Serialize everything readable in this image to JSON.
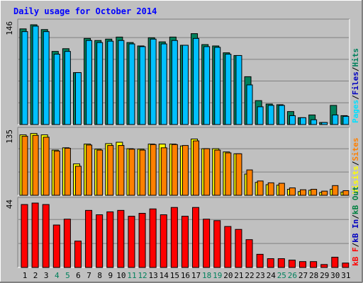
{
  "title": "Daily usage for October 2014",
  "colors": {
    "background": "#c0c0c0",
    "frame_light": "#ffffff",
    "frame_dark": "#808080",
    "title_blue": "#0000ff",
    "hits": "#00805c",
    "files": "#00c0ff",
    "pages": "#00e0ff",
    "visits": "#ffff00",
    "sites": "#ff8000",
    "kb_in": "#0000c0",
    "kb_out": "#008040",
    "kbytes": "#ff0000",
    "weekend_label": "#00805c",
    "day_label": "#000000"
  },
  "chart_data": [
    {
      "type": "bar",
      "panel": "hits-files-pages",
      "y_max_label": "146",
      "legend": [
        {
          "label": "Pages",
          "color": "#00e0ff"
        },
        {
          "label": "/",
          "color": "#000000"
        },
        {
          "label": "Files",
          "color": "#0000c0"
        },
        {
          "label": "/",
          "color": "#000000"
        },
        {
          "label": "Hits",
          "color": "#00805c"
        }
      ],
      "categories": [
        "1",
        "2",
        "3",
        "4",
        "5",
        "6",
        "7",
        "8",
        "9",
        "10",
        "11",
        "12",
        "13",
        "14",
        "15",
        "16",
        "17",
        "18",
        "19",
        "20",
        "21",
        "22",
        "23",
        "24",
        "25",
        "26",
        "27",
        "28",
        "29",
        "30",
        "31"
      ],
      "ymax": 146,
      "series": [
        {
          "name": "Hits",
          "values": [
            140,
            146,
            139,
            107,
            111,
            76,
            126,
            123,
            125,
            128,
            120,
            115,
            127,
            121,
            128,
            116,
            133,
            117,
            115,
            105,
            101,
            70,
            35,
            30,
            29,
            19,
            10,
            14,
            3,
            28,
            13
          ]
        },
        {
          "name": "Files",
          "values": [
            136,
            144,
            136,
            103,
            107,
            76,
            123,
            120,
            122,
            123,
            118,
            114,
            125,
            118,
            123,
            116,
            126,
            114,
            113,
            103,
            101,
            58,
            26,
            28,
            28,
            13,
            10,
            7,
            3,
            14,
            12
          ]
        }
      ]
    },
    {
      "type": "bar",
      "panel": "sites-visits",
      "y_max_label": "135",
      "legend": [
        {
          "label": "Visits",
          "color": "#ffff00"
        },
        {
          "label": "/",
          "color": "#000000"
        },
        {
          "label": "Sites",
          "color": "#ff8000"
        }
      ],
      "categories": [
        "1",
        "2",
        "3",
        "4",
        "5",
        "6",
        "7",
        "8",
        "9",
        "10",
        "11",
        "12",
        "13",
        "14",
        "15",
        "16",
        "17",
        "18",
        "19",
        "20",
        "21",
        "22",
        "23",
        "24",
        "25",
        "26",
        "27",
        "28",
        "29",
        "30",
        "31"
      ],
      "ymax": 135,
      "series": [
        {
          "name": "Visits",
          "values": [
            131,
            134,
            131,
            98,
            103,
            68,
            111,
            100,
            112,
            115,
            101,
            100,
            111,
            111,
            111,
            107,
            122,
            101,
            101,
            94,
            90,
            46,
            28,
            23,
            22,
            13,
            8,
            11,
            6,
            13,
            7
          ]
        },
        {
          "name": "Sites",
          "values": [
            128,
            130,
            126,
            96,
            102,
            63,
            109,
            98,
            108,
            108,
            100,
            98,
            110,
            103,
            110,
            108,
            118,
            101,
            98,
            92,
            90,
            55,
            31,
            27,
            26,
            16,
            12,
            13,
            9,
            21,
            10
          ]
        }
      ]
    },
    {
      "type": "bar",
      "panel": "kbytes",
      "y_max_label": "44",
      "legend": [
        {
          "label": "kB F",
          "color": "#ff0000"
        },
        {
          "label": "/",
          "color": "#000000"
        },
        {
          "label": "kB In",
          "color": "#0000c0"
        },
        {
          "label": "/",
          "color": "#000000"
        },
        {
          "label": "kB Out",
          "color": "#008040"
        }
      ],
      "categories": [
        "1",
        "2",
        "3",
        "4",
        "5",
        "6",
        "7",
        "8",
        "9",
        "10",
        "11",
        "12",
        "13",
        "14",
        "15",
        "16",
        "17",
        "18",
        "19",
        "20",
        "21",
        "22",
        "23",
        "24",
        "25",
        "26",
        "27",
        "28",
        "29",
        "30",
        "31"
      ],
      "ymax": 44,
      "series": [
        {
          "name": "KBytes",
          "values": [
            43,
            44,
            43,
            29,
            33,
            18,
            39,
            36,
            38,
            39,
            35,
            37,
            40,
            36,
            41,
            35,
            41,
            33,
            32,
            28,
            26,
            19,
            9,
            6,
            6,
            5,
            4,
            4,
            2,
            7,
            3
          ]
        }
      ]
    }
  ],
  "weekends": [
    4,
    5,
    11,
    12,
    18,
    19,
    25,
    26
  ]
}
